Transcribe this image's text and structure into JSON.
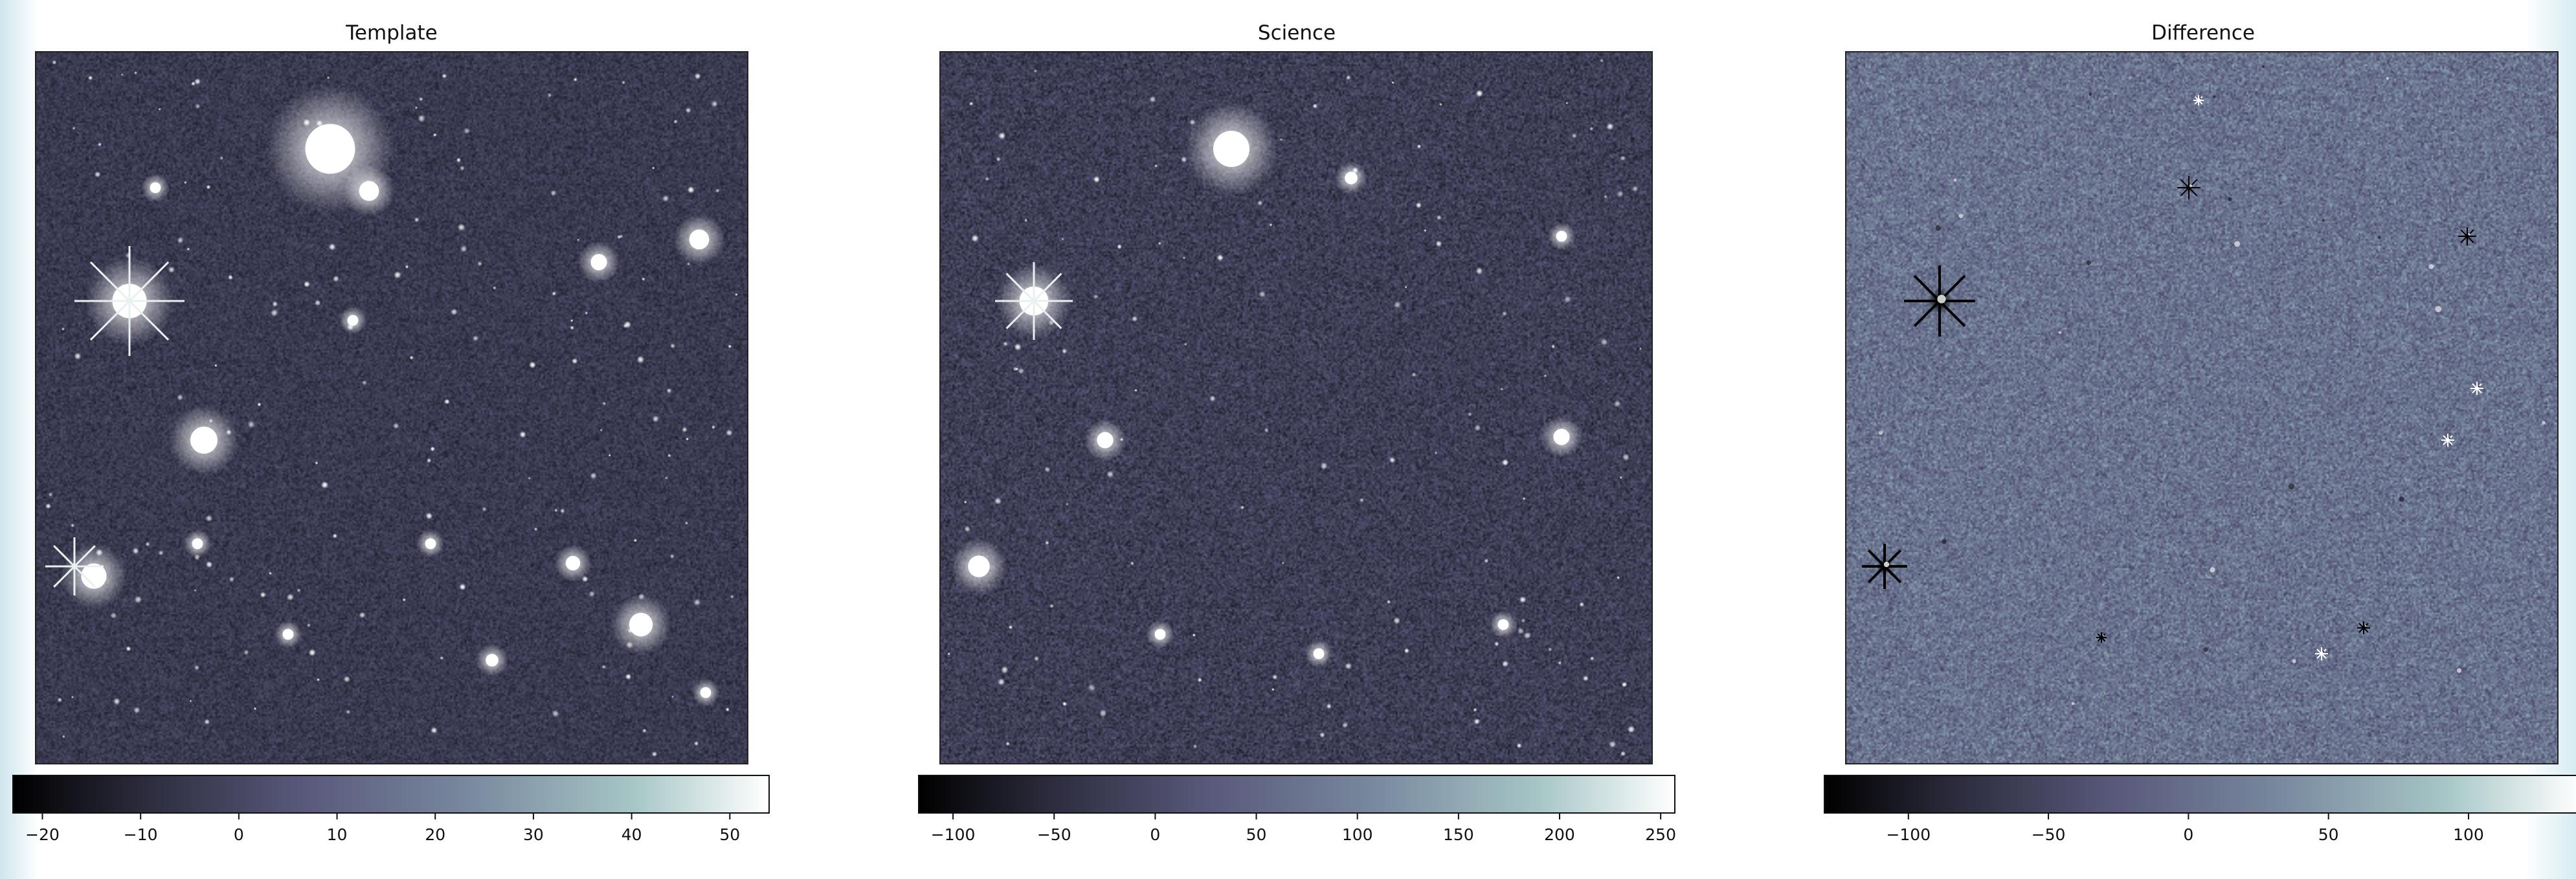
{
  "panels": [
    {
      "id": "template",
      "title": "Template",
      "colorbar": {
        "vmin": -23,
        "vmax": 54,
        "ticks": [
          "−20",
          "−10",
          "0",
          "10",
          "20",
          "30",
          "40",
          "50"
        ],
        "tick_values": [
          -20,
          -10,
          0,
          10,
          20,
          30,
          40,
          50
        ]
      },
      "image": {
        "background_level": 0.24,
        "noise": 0.3,
        "seed": 11,
        "kind": "stars",
        "n_faint": 170
      }
    },
    {
      "id": "science",
      "title": "Science",
      "colorbar": {
        "vmin": -117,
        "vmax": 257,
        "ticks": [
          "−100",
          "−50",
          "0",
          "50",
          "100",
          "150",
          "200",
          "250"
        ],
        "tick_values": [
          -100,
          -50,
          0,
          50,
          100,
          150,
          200,
          250
        ]
      },
      "image": {
        "background_level": 0.26,
        "noise": 0.38,
        "seed": 23,
        "kind": "stars",
        "n_faint": 130
      }
    },
    {
      "id": "difference",
      "title": "Difference",
      "colorbar": {
        "vmin": -130,
        "vmax": 140,
        "ticks": [
          "−100",
          "−50",
          "0",
          "50",
          "100"
        ],
        "tick_values": [
          -100,
          -50,
          0,
          50,
          100
        ]
      },
      "image": {
        "background_level": 0.5,
        "noise": 0.55,
        "seed": 37,
        "kind": "residual"
      }
    }
  ],
  "colormap": {
    "name": "bone",
    "stops": [
      "#000000",
      "#2d2d3f",
      "#58587a",
      "#78889e",
      "#a6c6c6",
      "#ffffff"
    ]
  }
}
